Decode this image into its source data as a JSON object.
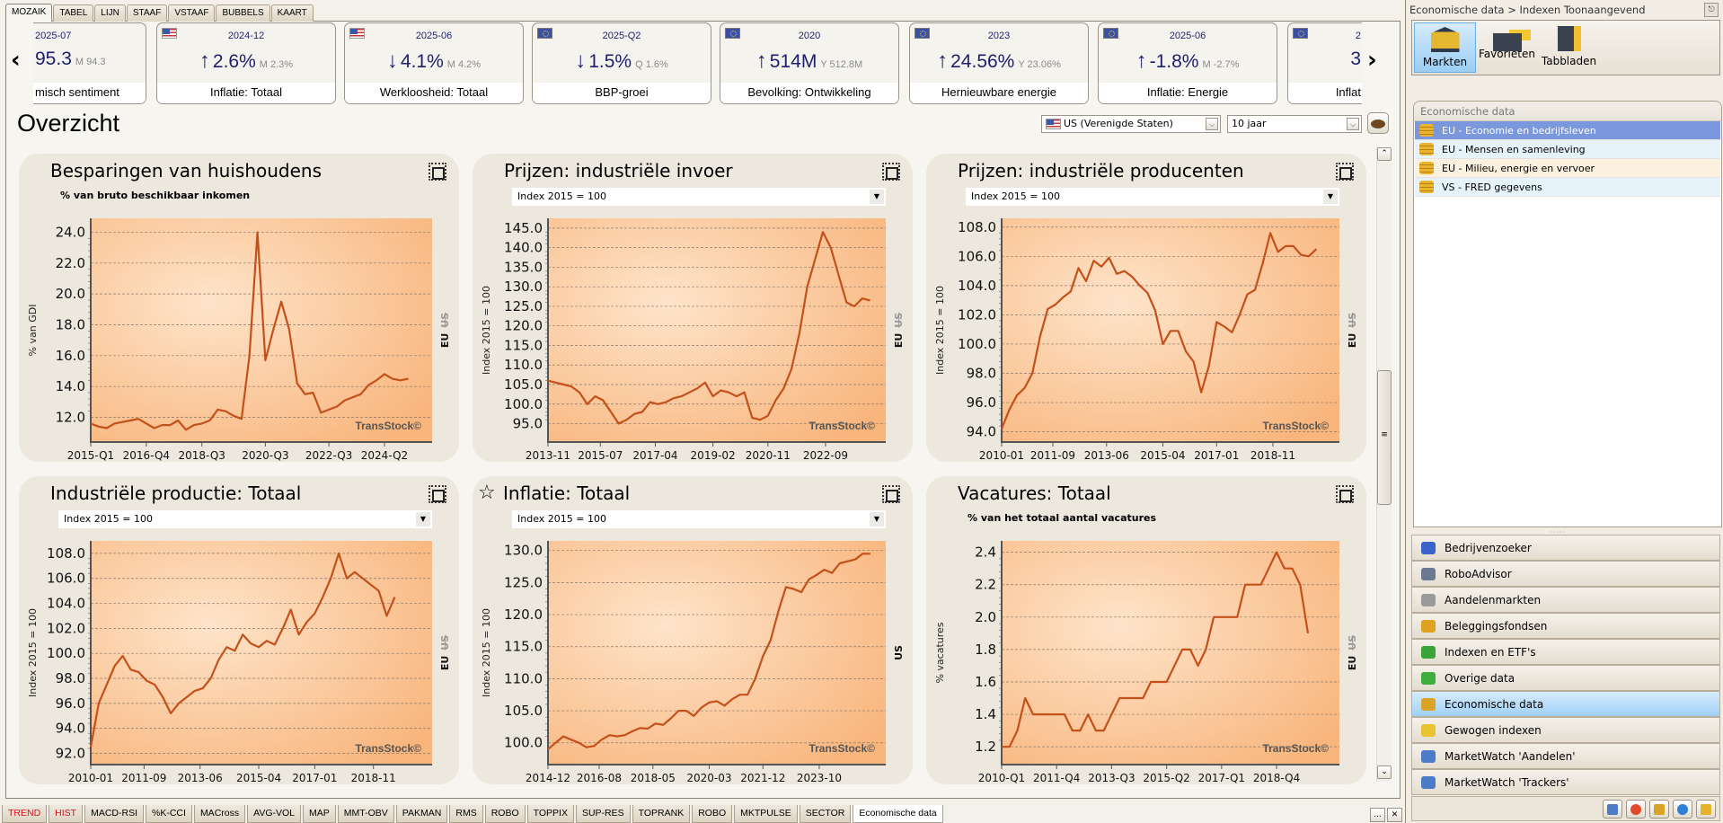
{
  "top_tabs": [
    {
      "label": "MOZAIK",
      "active": true
    },
    {
      "label": "TABEL"
    },
    {
      "label": "LIJN"
    },
    {
      "label": "STAAF"
    },
    {
      "label": "VSTAAF"
    },
    {
      "label": "BUBBELS"
    },
    {
      "label": "KAART"
    }
  ],
  "kpi_cards": [
    {
      "flag": "none",
      "date": "2025-07",
      "value": "95.3",
      "prev": "M 94.3",
      "arrow": "",
      "label": "misch sentiment",
      "clipped": "left"
    },
    {
      "flag": "us",
      "date": "2024-12",
      "value": "2.6%",
      "prev": "M 2.3%",
      "arrow": "up",
      "label": "Inflatie: Totaal"
    },
    {
      "flag": "us",
      "date": "2025-06",
      "value": "4.1%",
      "prev": "M 4.2%",
      "arrow": "down",
      "label": "Werkloosheid: Totaal"
    },
    {
      "flag": "eu",
      "date": "2025-Q2",
      "value": "1.5%",
      "prev": "Q 1.6%",
      "arrow": "down",
      "label": "BBP-groei"
    },
    {
      "flag": "eu",
      "date": "2020",
      "value": "514M",
      "prev": "Y 512.8M",
      "arrow": "up",
      "label": "Bevolking: Ontwikkeling"
    },
    {
      "flag": "eu",
      "date": "2023",
      "value": "24.56%",
      "prev": "Y 23.06%",
      "arrow": "up",
      "label": "Hernieuwbare energie"
    },
    {
      "flag": "eu",
      "date": "2025-06",
      "value": "-1.8%",
      "prev": "M -2.7%",
      "arrow": "up",
      "label": "Inflatie: Energie"
    },
    {
      "flag": "eu",
      "date": "2",
      "value": "3",
      "prev": "",
      "arrow": "",
      "label": "Inflat",
      "clipped": "right"
    }
  ],
  "nav": {
    "prev_icon": "chevron-left-icon",
    "next_icon": "chevron-right-icon"
  },
  "page_title": "Overzicht",
  "controls": {
    "country": "US (Verenigde Staten)",
    "period": "10 jaar",
    "palette_icon": "palette-icon"
  },
  "colors": {
    "line": "#c4501a",
    "accent_blue": "#1c1f6b",
    "selected_row": "#7b97dd"
  },
  "chart_data": [
    {
      "type": "line",
      "title": "Besparingen van huishoudens",
      "subtitle": "% van bruto beschikbaar inkomen",
      "ylabel": "% van GDI",
      "frequency": "quarterly",
      "x_start": "2015-Q1",
      "xlim": [
        "2015-Q1",
        "2025-Q4"
      ],
      "ylim": [
        10.4,
        24.9
      ],
      "yticks": [
        12,
        14,
        16,
        18,
        20,
        22,
        24
      ],
      "xticks": [
        "2015-Q1",
        "2016-Q4",
        "2018-Q3",
        "2020-Q3",
        "2022-Q3",
        "2024-Q2"
      ],
      "regions": {
        "active": "EU",
        "inactive": "US"
      },
      "watermark": "TransStock©",
      "grid": true,
      "values": [
        11.6,
        11.4,
        11.3,
        11.6,
        11.7,
        11.8,
        11.9,
        11.6,
        11.3,
        11.5,
        11.5,
        11.8,
        11.2,
        11.5,
        11.6,
        11.8,
        12.5,
        12.4,
        12.1,
        11.9,
        16,
        24,
        15.7,
        17.7,
        19.5,
        17.7,
        14.2,
        13.5,
        13.6,
        12.3,
        12.5,
        12.7,
        13.1,
        13.3,
        13.5,
        14.1,
        14.4,
        14.8,
        14.5,
        14.4,
        14.5
      ]
    },
    {
      "type": "line",
      "title": "Prijzen: industriële invoer",
      "dropdown": "Index 2015 = 100",
      "ylabel": "Index 2015 = 100",
      "frequency": "monthly",
      "xlim": [
        "2013-11",
        "2024-08"
      ],
      "ylim": [
        90.3,
        147.5
      ],
      "yticks": [
        95,
        100,
        105,
        110,
        115,
        120,
        125,
        130,
        135,
        140,
        145
      ],
      "xticks": [
        "2013-11",
        "2015-07",
        "2017-04",
        "2019-02",
        "2020-11",
        "2022-09"
      ],
      "regions": {
        "active": "EU",
        "inactive": "US"
      },
      "watermark": "TransStock©",
      "grid": true,
      "x": [
        "2013-11",
        "2014-02",
        "2014-05",
        "2014-08",
        "2014-11",
        "2015-02",
        "2015-05",
        "2015-08",
        "2015-11",
        "2016-02",
        "2016-05",
        "2016-08",
        "2016-11",
        "2017-02",
        "2017-05",
        "2017-08",
        "2017-11",
        "2018-02",
        "2018-05",
        "2018-08",
        "2018-11",
        "2019-02",
        "2019-05",
        "2019-08",
        "2019-11",
        "2020-02",
        "2020-05",
        "2020-08",
        "2020-11",
        "2021-02",
        "2021-05",
        "2021-08",
        "2021-11",
        "2022-02",
        "2022-05",
        "2022-08",
        "2022-11",
        "2023-02",
        "2023-05",
        "2023-08",
        "2023-11",
        "2024-02"
      ],
      "values": [
        106,
        105.5,
        105,
        104.5,
        103,
        100,
        102,
        101,
        98,
        95,
        96,
        97.5,
        98,
        100.5,
        100,
        100.5,
        101.5,
        102,
        103,
        104,
        105.5,
        102,
        103.5,
        103,
        102,
        103,
        96.5,
        96,
        97,
        101,
        104,
        109,
        118,
        130,
        137,
        144,
        140,
        133,
        126,
        125,
        127,
        126.5
      ]
    },
    {
      "type": "line",
      "title": "Prijzen: industriële producenten",
      "dropdown": "Index 2015 = 100",
      "ylabel": "Index 2015 = 100",
      "frequency": "monthly",
      "xlim": [
        "2010-01",
        "2021-01"
      ],
      "ylim": [
        93.3,
        108.6
      ],
      "yticks": [
        94,
        96,
        98,
        100,
        102,
        104,
        106,
        108
      ],
      "xticks": [
        "2010-01",
        "2011-09",
        "2013-06",
        "2015-04",
        "2017-01",
        "2018-11"
      ],
      "regions": {
        "active": "EU",
        "inactive": "US"
      },
      "watermark": "TransStock©",
      "grid": true,
      "x": [
        "2010-01",
        "2010-04",
        "2010-07",
        "2010-10",
        "2011-01",
        "2011-04",
        "2011-07",
        "2011-10",
        "2012-01",
        "2012-04",
        "2012-07",
        "2012-10",
        "2013-01",
        "2013-04",
        "2013-07",
        "2013-10",
        "2014-01",
        "2014-04",
        "2014-07",
        "2014-10",
        "2015-01",
        "2015-04",
        "2015-07",
        "2015-10",
        "2016-01",
        "2016-04",
        "2016-07",
        "2016-10",
        "2017-01",
        "2017-04",
        "2017-07",
        "2017-10",
        "2018-01",
        "2018-04",
        "2018-07",
        "2018-10",
        "2019-01",
        "2019-04",
        "2019-07",
        "2019-10",
        "2020-01",
        "2020-04"
      ],
      "values": [
        94.2,
        95.5,
        96.5,
        97,
        98,
        100.5,
        102.4,
        102.7,
        103.2,
        103.6,
        105.2,
        104.3,
        105.7,
        105.3,
        105.9,
        104.8,
        105.0,
        104.6,
        104.0,
        103.5,
        102.3,
        100.0,
        100.9,
        100.9,
        99.5,
        98.8,
        96.7,
        98.5,
        101.5,
        101.2,
        100.8,
        102,
        103.4,
        103.7,
        105.5,
        107.6,
        106.3,
        106.7,
        106.7,
        106.1,
        106.0,
        106.5
      ]
    },
    {
      "type": "line",
      "title": "Industriële productie: Totaal",
      "dropdown": "Index 2015 = 100",
      "ylabel": "Index 2015 = 100",
      "frequency": "monthly",
      "xlim": [
        "2010-01",
        "2020-09"
      ],
      "ylim": [
        91.1,
        109
      ],
      "yticks": [
        92,
        94,
        96,
        98,
        100,
        102,
        104,
        106,
        108
      ],
      "xticks": [
        "2010-01",
        "2011-09",
        "2013-06",
        "2015-04",
        "2017-01",
        "2018-11"
      ],
      "regions": {
        "active": "EU",
        "inactive": "US"
      },
      "watermark": "TransStock©",
      "grid": true,
      "x": [
        "2010-01",
        "2010-04",
        "2010-07",
        "2010-10",
        "2011-01",
        "2011-04",
        "2011-07",
        "2011-10",
        "2012-01",
        "2012-04",
        "2012-07",
        "2012-10",
        "2013-01",
        "2013-04",
        "2013-07",
        "2013-10",
        "2014-01",
        "2014-04",
        "2014-07",
        "2014-10",
        "2015-01",
        "2015-04",
        "2015-07",
        "2015-10",
        "2016-01",
        "2016-04",
        "2016-07",
        "2016-10",
        "2017-01",
        "2017-04",
        "2017-07",
        "2017-10",
        "2018-01",
        "2018-04",
        "2018-07",
        "2018-10",
        "2019-01",
        "2019-04",
        "2019-07"
      ],
      "values": [
        92.5,
        96,
        97.5,
        99,
        99.8,
        98.7,
        98.5,
        97.8,
        97.5,
        96.5,
        95.2,
        96,
        96.5,
        97,
        97.2,
        98,
        99.5,
        100.5,
        100.2,
        101.5,
        100.8,
        100.5,
        101,
        100.7,
        102,
        103.5,
        101.5,
        102.5,
        103.2,
        104.5,
        106,
        108,
        106,
        106.5,
        106,
        105.5,
        105,
        103,
        104.5
      ]
    },
    {
      "type": "line",
      "title": "Inflatie: Totaal",
      "favorite": true,
      "dropdown": "Index 2015 = 100",
      "ylabel": "Index 2015 = 100",
      "frequency": "monthly",
      "xlim": [
        "2014-12",
        "2025-12"
      ],
      "ylim": [
        96.6,
        131.5
      ],
      "yticks": [
        100,
        105,
        110,
        115,
        120,
        125,
        130
      ],
      "xticks": [
        "2014-12",
        "2016-08",
        "2018-05",
        "2020-03",
        "2021-12",
        "2023-10"
      ],
      "regions": {
        "active": "US",
        "inactive": ""
      },
      "watermark": "TransStock©",
      "grid": true,
      "x": [
        "2014-12",
        "2015-03",
        "2015-06",
        "2015-09",
        "2015-12",
        "2016-03",
        "2016-06",
        "2016-09",
        "2016-12",
        "2017-03",
        "2017-06",
        "2017-09",
        "2017-12",
        "2018-03",
        "2018-06",
        "2018-09",
        "2018-12",
        "2019-03",
        "2019-06",
        "2019-09",
        "2019-12",
        "2020-03",
        "2020-06",
        "2020-09",
        "2020-12",
        "2021-03",
        "2021-06",
        "2021-09",
        "2021-12",
        "2022-03",
        "2022-06",
        "2022-09",
        "2022-12",
        "2023-03",
        "2023-06",
        "2023-09",
        "2023-12",
        "2024-03",
        "2024-06",
        "2024-09",
        "2024-12",
        "2025-03",
        "2025-06"
      ],
      "values": [
        99,
        100,
        101,
        100.5,
        100,
        99.3,
        99.5,
        100.5,
        101.2,
        101,
        101.2,
        101.8,
        102.3,
        102.2,
        103,
        102.8,
        103.8,
        105,
        105,
        104.2,
        105.5,
        106.3,
        106.5,
        105.8,
        106.8,
        107.5,
        107.5,
        110,
        113.5,
        116,
        120.5,
        124.3,
        124,
        123.5,
        125.5,
        126.2,
        127,
        126.5,
        128,
        128.3,
        128.6,
        129.5,
        129.5
      ]
    },
    {
      "type": "line",
      "title": "Vacatures: Totaal",
      "subtitle": "% van het totaal aantal vacatures",
      "ylabel": "% vacatures",
      "frequency": "quarterly",
      "x_start": "2010-Q1",
      "xlim": [
        "2010-Q1",
        "2020-Q4"
      ],
      "ylim": [
        1.09,
        2.47
      ],
      "yticks": [
        1.2,
        1.4,
        1.6,
        1.8,
        2.0,
        2.2,
        2.4
      ],
      "xticks": [
        "2010-Q1",
        "2011-Q4",
        "2013-Q3",
        "2015-Q2",
        "2017-Q1",
        "2018-Q4"
      ],
      "regions": {
        "active": "EU",
        "inactive": "US"
      },
      "watermark": "TransStock©",
      "grid": true,
      "values": [
        1.2,
        1.2,
        1.3,
        1.5,
        1.4,
        1.4,
        1.4,
        1.4,
        1.4,
        1.3,
        1.3,
        1.4,
        1.3,
        1.3,
        1.4,
        1.5,
        1.5,
        1.5,
        1.5,
        1.6,
        1.6,
        1.6,
        1.7,
        1.8,
        1.8,
        1.7,
        1.8,
        2.0,
        2.0,
        2.0,
        2.0,
        2.2,
        2.2,
        2.2,
        2.3,
        2.4,
        2.3,
        2.3,
        2.2,
        1.9
      ]
    }
  ],
  "bottom_tabs": [
    {
      "label": "TREND",
      "red": true
    },
    {
      "label": "HIST",
      "red": true
    },
    {
      "label": "MACD-RSI"
    },
    {
      "label": "%K-CCI"
    },
    {
      "label": "MACross"
    },
    {
      "label": "AVG-VOL"
    },
    {
      "label": "MAP"
    },
    {
      "label": "MMT-OBV"
    },
    {
      "label": "PAKMAN"
    },
    {
      "label": "RMS"
    },
    {
      "label": "ROBO"
    },
    {
      "label": "TOPPIX"
    },
    {
      "label": "SUP-RES"
    },
    {
      "label": "TOPRANK"
    },
    {
      "label": "ROBO"
    },
    {
      "label": "MKTPULSE"
    },
    {
      "label": "SECTOR"
    },
    {
      "label": "Economische data",
      "active": true
    }
  ],
  "bottom_buttons": {
    "more": "...",
    "close": "✕"
  },
  "right_panel": {
    "breadcrumb": "Economische data > Indexen Toonaangevend",
    "toolbar": [
      {
        "label": "Markten",
        "icon": "bank-icon",
        "active": true
      },
      {
        "label": "Favorieten",
        "icon": "favorites-icon"
      },
      {
        "label": "Tabbladen",
        "icon": "tabs-icon"
      }
    ],
    "group_title": "Economische data",
    "group_items": [
      {
        "label": "EU - Economie en bedrijfsleven",
        "active": true
      },
      {
        "label": "EU - Mensen en samenleving"
      },
      {
        "label": "EU - Milieu, energie en vervoer"
      },
      {
        "label": "VS - FRED gegevens"
      }
    ],
    "nav_items": [
      {
        "label": "Bedrijvenzoeker",
        "icon": "binoculars-icon",
        "color": "#3a62c8"
      },
      {
        "label": "RoboAdvisor",
        "icon": "robot-icon",
        "color": "#6b7a90"
      },
      {
        "label": "Aandelenmarkten",
        "icon": "building-icon",
        "color": "#9a9a9a"
      },
      {
        "label": "Beleggingsfondsen",
        "icon": "shapes-icon",
        "color": "#e0a020"
      },
      {
        "label": "Indexen en ETF's",
        "icon": "tree-icon",
        "color": "#3aa33a"
      },
      {
        "label": "Overige data",
        "icon": "money-icon",
        "color": "#3fae3f"
      },
      {
        "label": "Economische data",
        "icon": "coins-icon",
        "color": "#d9a426",
        "active": true
      },
      {
        "label": "Gewogen indexen",
        "icon": "puzzle-icon",
        "color": "#e8c430"
      },
      {
        "label": "MarketWatch 'Aandelen'",
        "icon": "chart-icon",
        "color": "#4c7cc8"
      },
      {
        "label": "MarketWatch 'Trackers'",
        "icon": "chart-icon",
        "color": "#4c7cc8"
      }
    ],
    "footer_icons": [
      "line-chart-icon",
      "pie-chart-icon",
      "factory-icon",
      "globe-icon",
      "coins-icon"
    ]
  }
}
